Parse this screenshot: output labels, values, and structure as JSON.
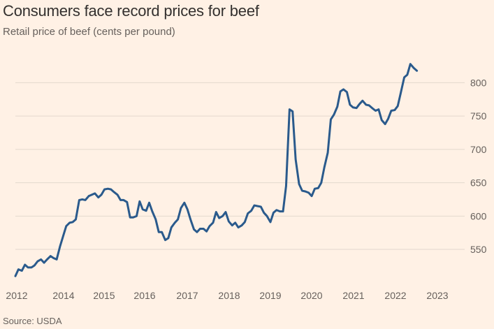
{
  "header": {
    "title": "Consumers face record prices for beef",
    "subtitle": "Retail price of beef (cents per pound)"
  },
  "footer": {
    "source": "Source: USDA"
  },
  "chart_data": {
    "type": "line",
    "title": "Consumers face record prices for beef",
    "subtitle": "Retail price of beef (cents per pound)",
    "xlabel": "",
    "ylabel": "",
    "x_ticks": [
      "2012",
      "2014",
      "2015",
      "2016",
      "2017",
      "2018",
      "2019",
      "2020",
      "2021",
      "2022",
      "2023"
    ],
    "y_ticks": [
      550,
      600,
      650,
      700,
      750,
      800
    ],
    "xlim": [
      2012.0,
      2023.75
    ],
    "ylim": [
      505,
      835
    ],
    "grid": "horizontal",
    "legend": "none",
    "series": [
      {
        "color": "#2a5a8c",
        "points": [
          [
            2012.0,
            510
          ],
          [
            2012.08,
            520
          ],
          [
            2012.17,
            518
          ],
          [
            2012.25,
            527
          ],
          [
            2012.33,
            523
          ],
          [
            2012.42,
            523
          ],
          [
            2012.5,
            526
          ],
          [
            2012.58,
            532
          ],
          [
            2012.67,
            535
          ],
          [
            2012.75,
            530
          ],
          [
            2012.83,
            535
          ],
          [
            2012.92,
            540
          ],
          [
            2013.0,
            537
          ],
          [
            2013.08,
            535
          ],
          [
            2013.17,
            555
          ],
          [
            2013.25,
            570
          ],
          [
            2013.33,
            585
          ],
          [
            2013.42,
            590
          ],
          [
            2013.5,
            591
          ],
          [
            2013.58,
            595
          ],
          [
            2013.67,
            624
          ],
          [
            2013.75,
            625
          ],
          [
            2013.83,
            624
          ],
          [
            2013.92,
            630
          ],
          [
            2014.0,
            632
          ],
          [
            2014.08,
            634
          ],
          [
            2014.17,
            628
          ],
          [
            2014.25,
            632
          ],
          [
            2014.33,
            640
          ],
          [
            2014.42,
            641
          ],
          [
            2014.5,
            640
          ],
          [
            2014.58,
            636
          ],
          [
            2014.67,
            632
          ],
          [
            2014.75,
            624
          ],
          [
            2014.83,
            624
          ],
          [
            2014.92,
            621
          ],
          [
            2015.0,
            598
          ],
          [
            2015.08,
            598
          ],
          [
            2015.17,
            600
          ],
          [
            2015.25,
            622
          ],
          [
            2015.33,
            610
          ],
          [
            2015.42,
            608
          ],
          [
            2015.5,
            620
          ],
          [
            2015.58,
            607
          ],
          [
            2015.67,
            595
          ],
          [
            2015.75,
            576
          ],
          [
            2015.83,
            576
          ],
          [
            2015.92,
            564
          ],
          [
            2016.0,
            567
          ],
          [
            2016.08,
            583
          ],
          [
            2016.17,
            590
          ],
          [
            2016.25,
            595
          ],
          [
            2016.33,
            612
          ],
          [
            2016.42,
            620
          ],
          [
            2016.5,
            610
          ],
          [
            2016.58,
            595
          ],
          [
            2016.67,
            580
          ],
          [
            2016.75,
            576
          ],
          [
            2016.83,
            581
          ],
          [
            2016.92,
            581
          ],
          [
            2017.0,
            577
          ],
          [
            2017.08,
            585
          ],
          [
            2017.17,
            590
          ],
          [
            2017.25,
            606
          ],
          [
            2017.33,
            597
          ],
          [
            2017.42,
            600
          ],
          [
            2017.5,
            606
          ],
          [
            2017.58,
            592
          ],
          [
            2017.67,
            586
          ],
          [
            2017.75,
            590
          ],
          [
            2017.83,
            583
          ],
          [
            2017.92,
            586
          ],
          [
            2018.0,
            591
          ],
          [
            2018.08,
            604
          ],
          [
            2018.17,
            608
          ],
          [
            2018.25,
            616
          ],
          [
            2018.33,
            615
          ],
          [
            2018.42,
            614
          ],
          [
            2018.5,
            605
          ],
          [
            2018.58,
            600
          ],
          [
            2018.67,
            591
          ],
          [
            2018.75,
            605
          ],
          [
            2018.83,
            609
          ],
          [
            2018.92,
            607
          ],
          [
            2019.0,
            607
          ],
          [
            2019.08,
            645
          ],
          [
            2019.17,
            760
          ],
          [
            2019.25,
            757
          ],
          [
            2019.33,
            685
          ],
          [
            2019.42,
            648
          ],
          [
            2019.5,
            638
          ],
          [
            2019.58,
            637
          ],
          [
            2019.67,
            635
          ],
          [
            2019.75,
            630
          ],
          [
            2019.83,
            641
          ],
          [
            2019.92,
            642
          ],
          [
            2020.0,
            650
          ],
          [
            2020.08,
            673
          ],
          [
            2020.17,
            695
          ],
          [
            2020.25,
            745
          ],
          [
            2020.33,
            752
          ],
          [
            2020.42,
            764
          ],
          [
            2020.5,
            787
          ],
          [
            2020.58,
            790
          ],
          [
            2020.67,
            786
          ],
          [
            2020.75,
            767
          ],
          [
            2020.83,
            763
          ],
          [
            2020.92,
            762
          ],
          [
            2021.0,
            768
          ],
          [
            2021.08,
            773
          ],
          [
            2021.17,
            767
          ],
          [
            2021.25,
            766
          ],
          [
            2021.33,
            762
          ],
          [
            2021.42,
            758
          ],
          [
            2021.5,
            760
          ],
          [
            2021.58,
            744
          ],
          [
            2021.67,
            738
          ],
          [
            2021.75,
            746
          ],
          [
            2021.83,
            758
          ],
          [
            2021.92,
            759
          ],
          [
            2022.0,
            765
          ],
          [
            2022.08,
            785
          ],
          [
            2022.17,
            808
          ],
          [
            2022.25,
            812
          ],
          [
            2022.33,
            828
          ],
          [
            2022.42,
            822
          ],
          [
            2022.5,
            818
          ]
        ]
      }
    ]
  }
}
